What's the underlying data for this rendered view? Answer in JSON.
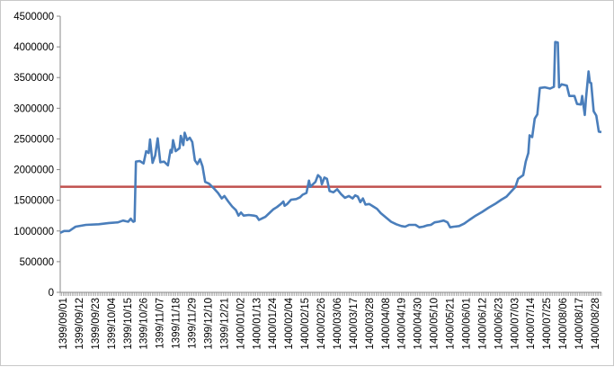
{
  "chart_data": {
    "type": "line",
    "title": "",
    "xlabel": "",
    "ylabel": "",
    "ylim": [
      0,
      4500000
    ],
    "yticks": [
      0,
      500000,
      1000000,
      1500000,
      2000000,
      2500000,
      3000000,
      3500000,
      4000000,
      4500000
    ],
    "ytick_labels": [
      "0",
      "500000",
      "1000000",
      "1500000",
      "2000000",
      "2500000",
      "3000000",
      "3500000",
      "4000000",
      "4500000"
    ],
    "grid": false,
    "legend": "none",
    "x_tick_labels": [
      "1399/09/01",
      "1399/09/12",
      "1399/09/23",
      "1399/10/04",
      "1399/10/15",
      "1399/10/26",
      "1399/11/07",
      "1399/11/18",
      "1399/11/29",
      "1399/12/10",
      "1399/12/21",
      "1400/01/02",
      "1400/01/13",
      "1400/01/24",
      "1400/02/04",
      "1400/02/15",
      "1400/02/26",
      "1400/03/06",
      "1400/03/17",
      "1400/03/28",
      "1400/04/08",
      "1400/04/19",
      "1400/04/30",
      "1400/05/10",
      "1400/05/21",
      "1400/06/01",
      "1400/06/12",
      "1400/06/23",
      "1400/07/03",
      "1400/07/14",
      "1400/07/25",
      "1400/08/06",
      "1400/08/17",
      "1400/08/28"
    ],
    "n_points": 365,
    "series": [
      {
        "color": "#4a7ebb",
        "points": [
          [
            0,
            970000
          ],
          [
            3,
            1000000
          ],
          [
            7,
            1000000
          ],
          [
            12,
            1070000
          ],
          [
            20,
            1100000
          ],
          [
            30,
            1110000
          ],
          [
            38,
            1130000
          ],
          [
            45,
            1140000
          ],
          [
            49,
            1170000
          ],
          [
            51,
            1160000
          ],
          [
            53,
            1150000
          ],
          [
            55,
            1200000
          ],
          [
            56,
            1170000
          ],
          [
            57,
            1150000
          ],
          [
            58,
            1160000
          ],
          [
            59,
            2130000
          ],
          [
            62,
            2140000
          ],
          [
            65,
            2100000
          ],
          [
            67,
            2300000
          ],
          [
            69,
            2270000
          ],
          [
            70,
            2490000
          ],
          [
            72,
            2110000
          ],
          [
            74,
            2230000
          ],
          [
            76,
            2510000
          ],
          [
            78,
            2120000
          ],
          [
            81,
            2130000
          ],
          [
            84,
            2070000
          ],
          [
            86,
            2320000
          ],
          [
            87,
            2280000
          ],
          [
            88,
            2480000
          ],
          [
            90,
            2300000
          ],
          [
            93,
            2350000
          ],
          [
            94,
            2550000
          ],
          [
            96,
            2400000
          ],
          [
            97,
            2600000
          ],
          [
            99,
            2480000
          ],
          [
            101,
            2520000
          ],
          [
            103,
            2450000
          ],
          [
            105,
            2150000
          ],
          [
            107,
            2090000
          ],
          [
            109,
            2170000
          ],
          [
            111,
            2050000
          ],
          [
            113,
            1800000
          ],
          [
            116,
            1770000
          ],
          [
            120,
            1690000
          ],
          [
            123,
            1620000
          ],
          [
            126,
            1530000
          ],
          [
            128,
            1570000
          ],
          [
            131,
            1480000
          ],
          [
            134,
            1400000
          ],
          [
            137,
            1340000
          ],
          [
            139,
            1250000
          ],
          [
            141,
            1300000
          ],
          [
            143,
            1250000
          ],
          [
            147,
            1260000
          ],
          [
            151,
            1250000
          ],
          [
            153,
            1240000
          ],
          [
            155,
            1180000
          ],
          [
            157,
            1200000
          ],
          [
            160,
            1230000
          ],
          [
            163,
            1290000
          ],
          [
            166,
            1350000
          ],
          [
            169,
            1390000
          ],
          [
            172,
            1440000
          ],
          [
            174,
            1480000
          ],
          [
            175,
            1410000
          ],
          [
            177,
            1440000
          ],
          [
            180,
            1510000
          ],
          [
            184,
            1520000
          ],
          [
            187,
            1550000
          ],
          [
            189,
            1590000
          ],
          [
            192,
            1620000
          ],
          [
            194,
            1820000
          ],
          [
            195,
            1720000
          ],
          [
            197,
            1760000
          ],
          [
            199,
            1800000
          ],
          [
            201,
            1910000
          ],
          [
            203,
            1870000
          ],
          [
            204,
            1760000
          ],
          [
            206,
            1870000
          ],
          [
            208,
            1850000
          ],
          [
            210,
            1650000
          ],
          [
            213,
            1630000
          ],
          [
            216,
            1680000
          ],
          [
            219,
            1600000
          ],
          [
            222,
            1540000
          ],
          [
            225,
            1570000
          ],
          [
            228,
            1530000
          ],
          [
            230,
            1580000
          ],
          [
            232,
            1560000
          ],
          [
            234,
            1470000
          ],
          [
            236,
            1530000
          ],
          [
            238,
            1430000
          ],
          [
            241,
            1440000
          ],
          [
            244,
            1400000
          ],
          [
            247,
            1360000
          ],
          [
            250,
            1290000
          ],
          [
            254,
            1220000
          ],
          [
            258,
            1150000
          ],
          [
            262,
            1110000
          ],
          [
            266,
            1080000
          ],
          [
            269,
            1070000
          ],
          [
            272,
            1100000
          ],
          [
            277,
            1100000
          ],
          [
            280,
            1060000
          ],
          [
            283,
            1070000
          ],
          [
            286,
            1090000
          ],
          [
            289,
            1100000
          ],
          [
            292,
            1140000
          ],
          [
            295,
            1150000
          ],
          [
            299,
            1170000
          ],
          [
            302,
            1140000
          ],
          [
            304,
            1060000
          ],
          [
            307,
            1070000
          ],
          [
            311,
            1080000
          ],
          [
            315,
            1120000
          ],
          [
            319,
            1180000
          ],
          [
            324,
            1250000
          ],
          [
            329,
            1310000
          ],
          [
            334,
            1380000
          ],
          [
            339,
            1440000
          ],
          [
            344,
            1510000
          ],
          [
            348,
            1560000
          ],
          [
            352,
            1650000
          ],
          [
            355,
            1720000
          ],
          [
            357,
            1850000
          ],
          [
            361,
            1910000
          ],
          [
            363,
            2130000
          ],
          [
            365,
            2270000
          ],
          [
            366,
            2560000
          ],
          [
            368,
            2530000
          ],
          [
            370,
            2830000
          ],
          [
            372,
            2900000
          ],
          [
            374,
            3330000
          ],
          [
            378,
            3340000
          ],
          [
            382,
            3320000
          ],
          [
            385,
            3350000
          ],
          [
            386,
            4080000
          ],
          [
            388,
            4070000
          ],
          [
            389,
            3340000
          ],
          [
            391,
            3390000
          ],
          [
            395,
            3370000
          ],
          [
            397,
            3200000
          ],
          [
            401,
            3200000
          ],
          [
            403,
            3070000
          ],
          [
            406,
            3060000
          ],
          [
            407,
            3200000
          ],
          [
            409,
            2890000
          ],
          [
            410,
            3170000
          ],
          [
            412,
            3600000
          ],
          [
            413,
            3420000
          ],
          [
            414,
            3410000
          ],
          [
            416,
            2950000
          ],
          [
            418,
            2880000
          ],
          [
            420,
            2620000
          ],
          [
            422,
            2610000
          ]
        ]
      }
    ],
    "threshold": {
      "value": 1720000,
      "color": "#c0504d"
    }
  }
}
